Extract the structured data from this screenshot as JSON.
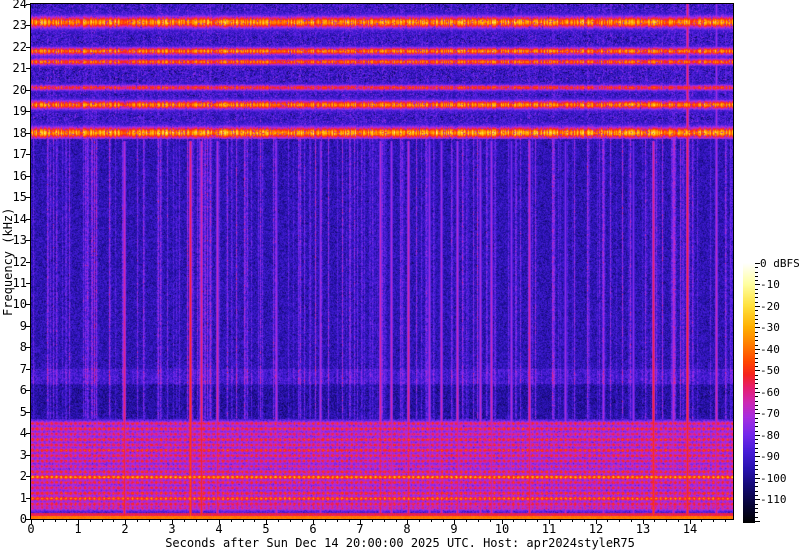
{
  "page": {
    "background_color": "#ffffff",
    "frame_color": "#000000",
    "text_color": "#000000"
  },
  "chart_data": {
    "type": "heatmap",
    "subtype": "audio-spectrogram",
    "title": "",
    "xlabel": "Seconds after Sun Dec 14 20:00:00 2025 UTC. Host: apr2024styleR75",
    "ylabel": "Frequency (kHz)",
    "xlim": [
      0,
      14.92
    ],
    "ylim": [
      0,
      24
    ],
    "grid": false,
    "x_tick_labels": [
      "0",
      "1",
      "2",
      "3",
      "4",
      "5",
      "6",
      "7",
      "8",
      "9",
      "10",
      "11",
      "12",
      "13",
      "14"
    ],
    "x_minor_tick_step": 0.25,
    "y_tick_labels": [
      "0",
      "1",
      "2",
      "3",
      "4",
      "5",
      "6",
      "7",
      "8",
      "9",
      "10",
      "11",
      "12",
      "13",
      "14",
      "15",
      "16",
      "17",
      "18",
      "19",
      "20",
      "21",
      "22",
      "23",
      "24"
    ],
    "colorbar": {
      "position": "right",
      "unit": "dBFS",
      "range_db": [
        0,
        -121
      ],
      "major_step_db": 10,
      "minor_step_db": 2,
      "major_tick_labels": [
        "0 dBFS",
        "-10",
        "-20",
        "-30",
        "-40",
        "-50",
        "-60",
        "-70",
        "-80",
        "-90",
        "-100",
        "-110"
      ]
    },
    "palette": [
      {
        "db": 0,
        "color": "#ffffff"
      },
      {
        "db": -10,
        "color": "#ffffa0"
      },
      {
        "db": -20,
        "color": "#ffe13c"
      },
      {
        "db": -30,
        "color": "#ffaf00"
      },
      {
        "db": -38,
        "color": "#ff7d00"
      },
      {
        "db": -46,
        "color": "#ff4600"
      },
      {
        "db": -52,
        "color": "#f5231e"
      },
      {
        "db": -58,
        "color": "#e61e6e"
      },
      {
        "db": -65,
        "color": "#cd28b4"
      },
      {
        "db": -72,
        "color": "#a52de1"
      },
      {
        "db": -80,
        "color": "#7328eb"
      },
      {
        "db": -88,
        "color": "#461cd7"
      },
      {
        "db": -96,
        "color": "#2812af"
      },
      {
        "db": -104,
        "color": "#140a73"
      },
      {
        "db": -112,
        "color": "#08053c"
      },
      {
        "db": -121,
        "color": "#000000"
      }
    ],
    "content": {
      "region_bounds_khz": {
        "top": [
          17.72,
          24
        ],
        "mid": [
          4.68,
          17.72
        ],
        "low": [
          0,
          4.68
        ]
      },
      "background_db": {
        "top_region": -99,
        "mid_region": -101,
        "low_region": -94
      },
      "tone_bands_khz": [
        {
          "center": 23.15,
          "sigma": 0.2,
          "peak_db": -37
        },
        {
          "center": 21.8,
          "sigma": 0.13,
          "peak_db": -41
        },
        {
          "center": 21.3,
          "sigma": 0.11,
          "peak_db": -44
        },
        {
          "center": 20.1,
          "sigma": 0.1,
          "peak_db": -52
        },
        {
          "center": 19.3,
          "sigma": 0.15,
          "peak_db": -40
        },
        {
          "center": 18.0,
          "sigma": 0.2,
          "peak_db": -35
        }
      ],
      "low_band_stripes": [
        {
          "khz": 4.45,
          "amp_db": 30
        },
        {
          "khz": 4.2,
          "amp_db": 33
        },
        {
          "khz": 3.95,
          "amp_db": 28
        },
        {
          "khz": 3.7,
          "amp_db": 33
        },
        {
          "khz": 3.45,
          "amp_db": 30
        },
        {
          "khz": 3.2,
          "amp_db": 35
        },
        {
          "khz": 2.95,
          "amp_db": 31
        },
        {
          "khz": 2.7,
          "amp_db": 30
        },
        {
          "khz": 2.45,
          "amp_db": 27
        },
        {
          "khz": 2.2,
          "amp_db": 32
        },
        {
          "khz": 1.95,
          "amp_db": 50
        },
        {
          "khz": 1.7,
          "amp_db": 31
        },
        {
          "khz": 1.45,
          "amp_db": 29
        },
        {
          "khz": 1.2,
          "amp_db": 33
        },
        {
          "khz": 0.95,
          "amp_db": 44
        },
        {
          "khz": 0.7,
          "amp_db": 30
        },
        {
          "khz": 0.5,
          "amp_db": 24
        }
      ],
      "dc_line": {
        "khz_below": 0.16,
        "db": -41
      },
      "transients": [
        {
          "t": 1.98,
          "db_low": -52,
          "db_high": -68,
          "f_max": 17.6
        },
        {
          "t": 3.38,
          "db_low": -45,
          "db_high": -58,
          "f_max": 17.6
        },
        {
          "t": 3.62,
          "db_low": -50,
          "db_high": -66,
          "f_max": 17.6
        },
        {
          "t": 3.95,
          "db_low": -57,
          "db_high": -70,
          "f_max": 17.6
        },
        {
          "t": 5.2,
          "db_low": -64,
          "db_high": -78,
          "f_max": 17.6
        },
        {
          "t": 6.15,
          "db_low": -66,
          "db_high": -78,
          "f_max": 17.6
        },
        {
          "t": 7.42,
          "db_low": -57,
          "db_high": -70,
          "f_max": 17.6
        },
        {
          "t": 7.65,
          "db_low": -60,
          "db_high": -73,
          "f_max": 17.6
        },
        {
          "t": 8.02,
          "db_low": -55,
          "db_high": -68,
          "f_max": 17.6
        },
        {
          "t": 8.45,
          "db_low": -63,
          "db_high": -76,
          "f_max": 17.6
        },
        {
          "t": 8.72,
          "db_low": -61,
          "db_high": -74,
          "f_max": 17.6
        },
        {
          "t": 9.05,
          "db_low": -59,
          "db_high": -72,
          "f_max": 17.6
        },
        {
          "t": 9.55,
          "db_low": -63,
          "db_high": -76,
          "f_max": 17.6
        },
        {
          "t": 9.78,
          "db_low": -59,
          "db_high": -72,
          "f_max": 17.6
        },
        {
          "t": 10.2,
          "db_low": -65,
          "db_high": -78,
          "f_max": 17.6
        },
        {
          "t": 10.58,
          "db_low": -55,
          "db_high": -69,
          "f_max": 17.6
        },
        {
          "t": 11.35,
          "db_low": -67,
          "db_high": -79,
          "f_max": 17.6
        },
        {
          "t": 12.15,
          "db_low": -67,
          "db_high": -79,
          "f_max": 17.6
        },
        {
          "t": 12.8,
          "db_low": -69,
          "db_high": -80,
          "f_max": 17.6
        },
        {
          "t": 13.22,
          "db_low": -47,
          "db_high": -62,
          "f_max": 17.6
        },
        {
          "t": 13.65,
          "db_low": -63,
          "db_high": -76,
          "f_max": 17.6
        },
        {
          "t": 13.95,
          "db_low": -49,
          "db_high": -58,
          "f_max": 24
        },
        {
          "t": 14.55,
          "db_low": -60,
          "db_high": -74,
          "f_max": 24
        }
      ],
      "mid_region_features": [
        {
          "khz_range": [
            6.3,
            7.0
          ],
          "adj_db": 4,
          "texture": "dashed"
        },
        {
          "khz_range": [
            5.0,
            6.25
          ],
          "adj_db": -3
        },
        {
          "khz_range": [
            4.68,
            5.0
          ],
          "adj_db": -2
        }
      ]
    }
  }
}
